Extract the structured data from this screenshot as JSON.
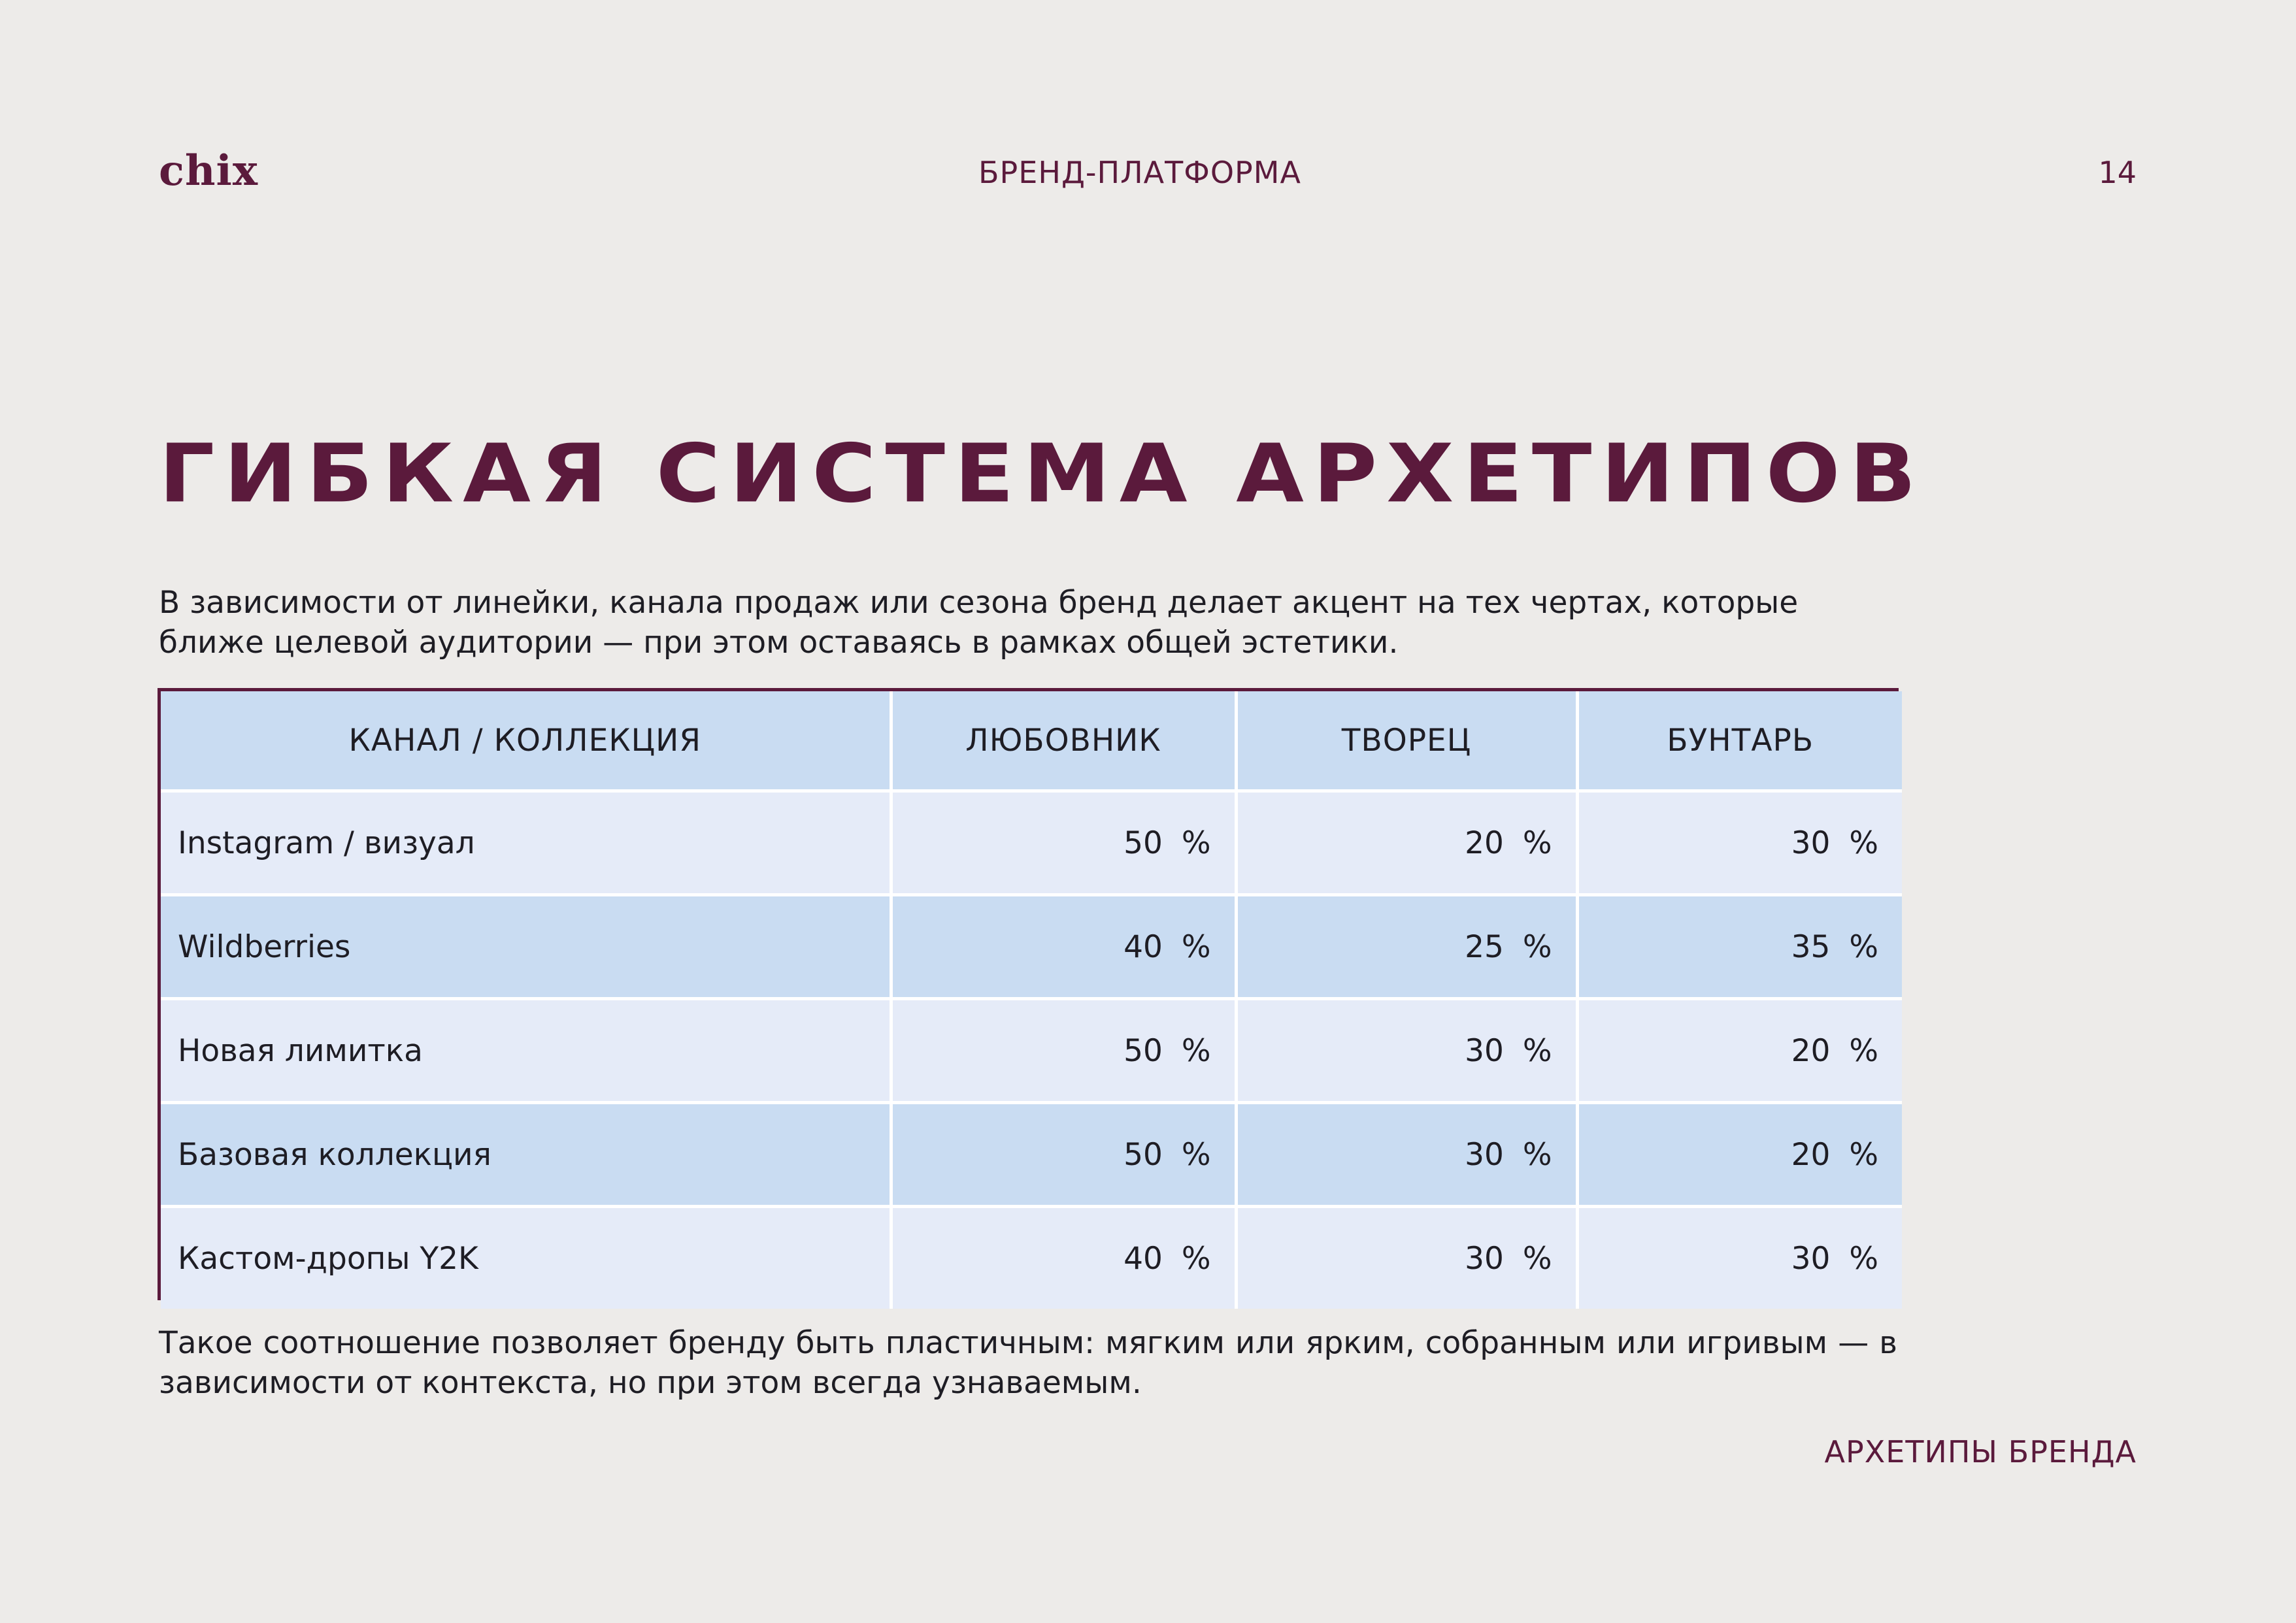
{
  "header": {
    "logo": "chix",
    "section": "БРЕНД-ПЛАТФОРМА",
    "page_number": "14"
  },
  "title": "ГИБКАЯ СИСТЕМА АРХЕТИПОВ",
  "intro": "В зависимости от линейки, канала продаж или сезона бренд делает акцент на тех чертах, которые ближе целевой аудитории — при этом оставаясь в рамках общей эстетики.",
  "table": {
    "headers": [
      "КАНАЛ / КОЛЛЕКЦИЯ",
      "ЛЮБОВНИК",
      "ТВОРЕЦ",
      "БУНТАРЬ"
    ],
    "rows": [
      {
        "name": "Instagram / визуал",
        "values": [
          "50 %",
          "20 %",
          "30 %"
        ]
      },
      {
        "name": "Wildberries",
        "values": [
          "40 %",
          "25 %",
          "35 %"
        ]
      },
      {
        "name": "Новая лимитка",
        "values": [
          "50 %",
          "30 %",
          "20 %"
        ]
      },
      {
        "name": "Базовая коллекция",
        "values": [
          "50 %",
          "30 %",
          "20 %"
        ]
      },
      {
        "name": "Кастом-дропы Y2K",
        "values": [
          "40 %",
          "30 %",
          "30 %"
        ]
      }
    ]
  },
  "outro": "Такое соотношение позволяет бренду быть пластичным: мягким или ярким, собранным или игривым — в зависимости от контекста, но при этом всегда узнаваемым.",
  "footer": "АРХЕТИПЫ БРЕНДА",
  "colors": {
    "brand": "#5b1a3c",
    "background": "#edebe9",
    "table_header": "#c9dcf2",
    "table_row_light": "#e5ebf8",
    "table_row_dark": "#c9dcf2"
  }
}
